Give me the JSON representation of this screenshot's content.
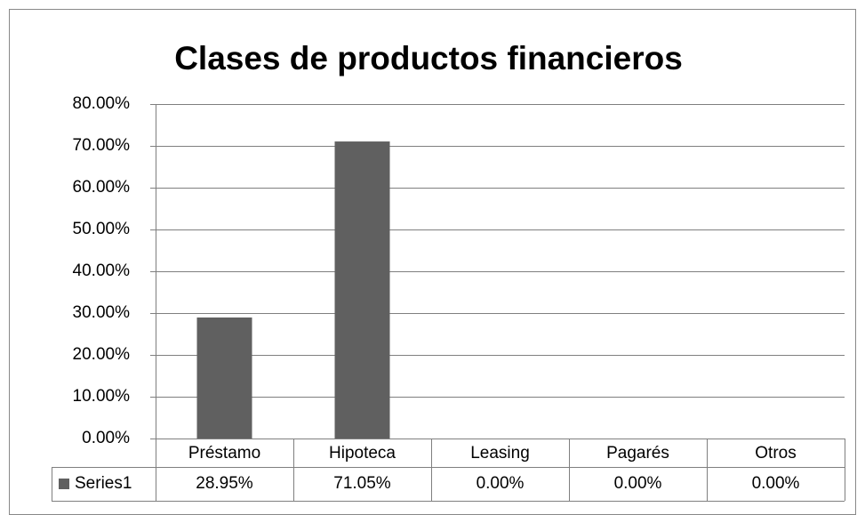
{
  "chart_data": {
    "type": "bar",
    "title": "Clases de productos financieros",
    "categories": [
      "Préstamo",
      "Hipoteca",
      "Leasing",
      "Pagarés",
      "Otros"
    ],
    "series": [
      {
        "name": "Series1",
        "color": "#606060",
        "values": [
          28.95,
          71.05,
          0,
          0,
          0
        ],
        "value_labels": [
          "28.95%",
          "71.05%",
          "0.00%",
          "0.00%",
          "0.00%"
        ]
      }
    ],
    "ylim": [
      0,
      80
    ],
    "yticks": [
      {
        "value": 0,
        "label": "0.00%"
      },
      {
        "value": 10,
        "label": "10.00%"
      },
      {
        "value": 20,
        "label": "20.00%"
      },
      {
        "value": 30,
        "label": "30.00%"
      },
      {
        "value": 40,
        "label": "40.00%"
      },
      {
        "value": 50,
        "label": "50.00%"
      },
      {
        "value": 60,
        "label": "60.00%"
      },
      {
        "value": 70,
        "label": "70.00%"
      },
      {
        "value": 80,
        "label": "80.00%"
      }
    ],
    "grid": true
  }
}
